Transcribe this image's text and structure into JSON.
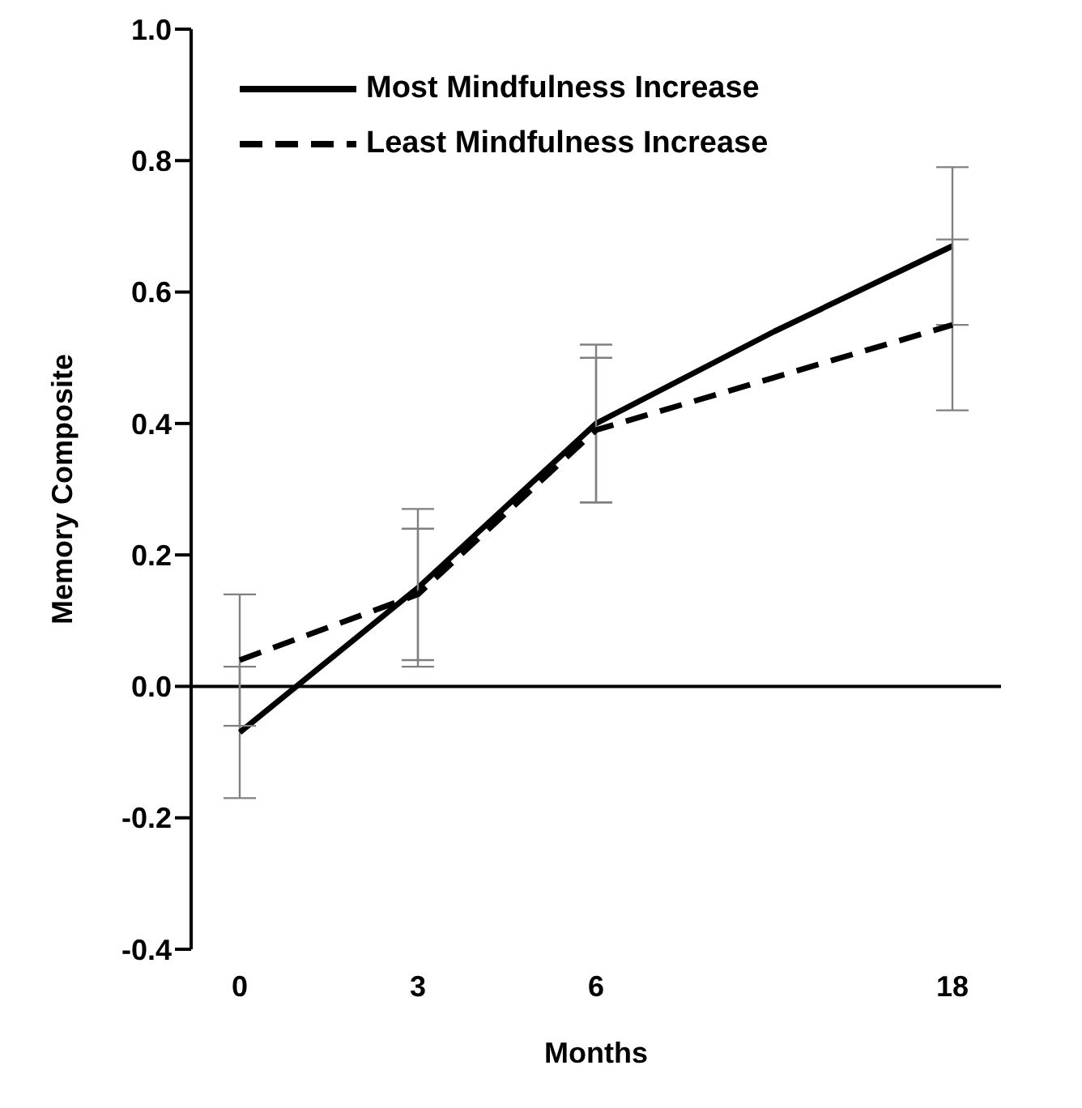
{
  "chart_data": {
    "type": "line",
    "xlabel": "Months",
    "ylabel": "Memory Composite",
    "categories": [
      "0",
      "3",
      "6",
      null,
      "18"
    ],
    "series": [
      {
        "name": "Most Mindfulness Increase",
        "color": "#000000",
        "line_style": "solid",
        "values": [
          -0.07,
          0.15,
          0.4,
          0.54,
          0.67
        ],
        "errors": [
          0.1,
          0.12,
          0.12,
          null,
          0.12
        ]
      },
      {
        "name": "Least Mindfulness Increase",
        "color": "#000000",
        "line_style": "dashed",
        "values": [
          0.04,
          0.14,
          0.39,
          0.47,
          0.55
        ],
        "errors": [
          0.1,
          0.1,
          0.11,
          null,
          0.13
        ]
      }
    ],
    "ylim": [
      -0.4,
      1.0
    ],
    "yticks": [
      {
        "value": -0.4,
        "label": "-0.4"
      },
      {
        "value": -0.2,
        "label": "-0.2"
      },
      {
        "value": 0,
        "label": "0.0"
      },
      {
        "value": 0.2,
        "label": "0.2"
      },
      {
        "value": 0.4,
        "label": "0.4"
      },
      {
        "value": 0.6,
        "label": "0.6"
      },
      {
        "value": 0.8,
        "label": "0.8"
      },
      {
        "value": 1,
        "label": "1.0"
      }
    ],
    "ref_lines": [
      {
        "axis": "y",
        "value": 0,
        "color": "#000000"
      }
    ],
    "grid": false,
    "legend": "top left",
    "marker": "none"
  }
}
